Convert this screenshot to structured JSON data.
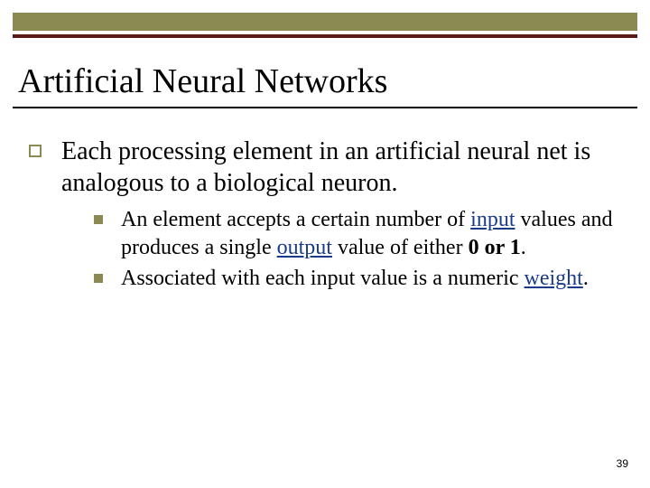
{
  "colors": {
    "olive": "#8a8a52",
    "maroon": "#5a1a1a",
    "link": "#1a3a8a",
    "text": "#000000",
    "background": "#ffffff"
  },
  "typography": {
    "title_fontsize": 38,
    "level1_fontsize": 28,
    "level2_fontsize": 24,
    "pagenum_fontsize": 12,
    "font_family": "Times New Roman"
  },
  "title": "Artificial Neural Networks",
  "bullets": {
    "level1": {
      "text": "Each processing element in an artificial neural net is analogous to a biological neuron."
    },
    "level2": [
      {
        "pre1": "An element accepts a certain number of ",
        "link1": "input",
        "mid1": " values and produces a single ",
        "link2": "output",
        "mid2": " value of either ",
        "bold": "0 or 1",
        "post": "."
      },
      {
        "pre1": "Associated with each input value is a numeric ",
        "link1": "weight",
        "post": "."
      }
    ]
  },
  "page_number": "39"
}
